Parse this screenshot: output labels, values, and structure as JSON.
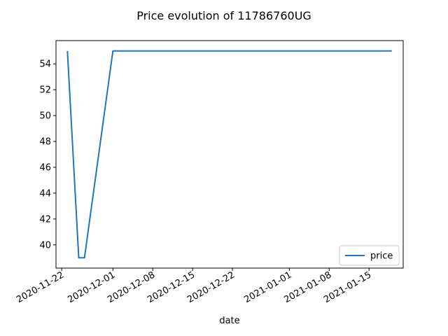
{
  "chart_data": {
    "type": "line",
    "title": "Price evolution of 11786760UG",
    "xlabel": "date",
    "ylabel": "",
    "x_ticks": [
      "2020-11-22",
      "2020-12-01",
      "2020-12-08",
      "2020-12-15",
      "2020-12-22",
      "2021-01-01",
      "2021-01-08",
      "2021-01-15"
    ],
    "y_ticks": [
      40,
      42,
      44,
      46,
      48,
      50,
      52,
      54
    ],
    "xlim": [
      "2020-11-21",
      "2021-01-21"
    ],
    "ylim": [
      38.2,
      55.8
    ],
    "grid": false,
    "legend": {
      "position": "lower-right",
      "entries": [
        "price"
      ]
    },
    "series": [
      {
        "name": "price",
        "color": "#1f77b4",
        "points": [
          {
            "x": "2020-11-23",
            "y": 55
          },
          {
            "x": "2020-11-25",
            "y": 39
          },
          {
            "x": "2020-11-26",
            "y": 39
          },
          {
            "x": "2020-12-01",
            "y": 55
          },
          {
            "x": "2021-01-19",
            "y": 55
          }
        ]
      }
    ]
  }
}
